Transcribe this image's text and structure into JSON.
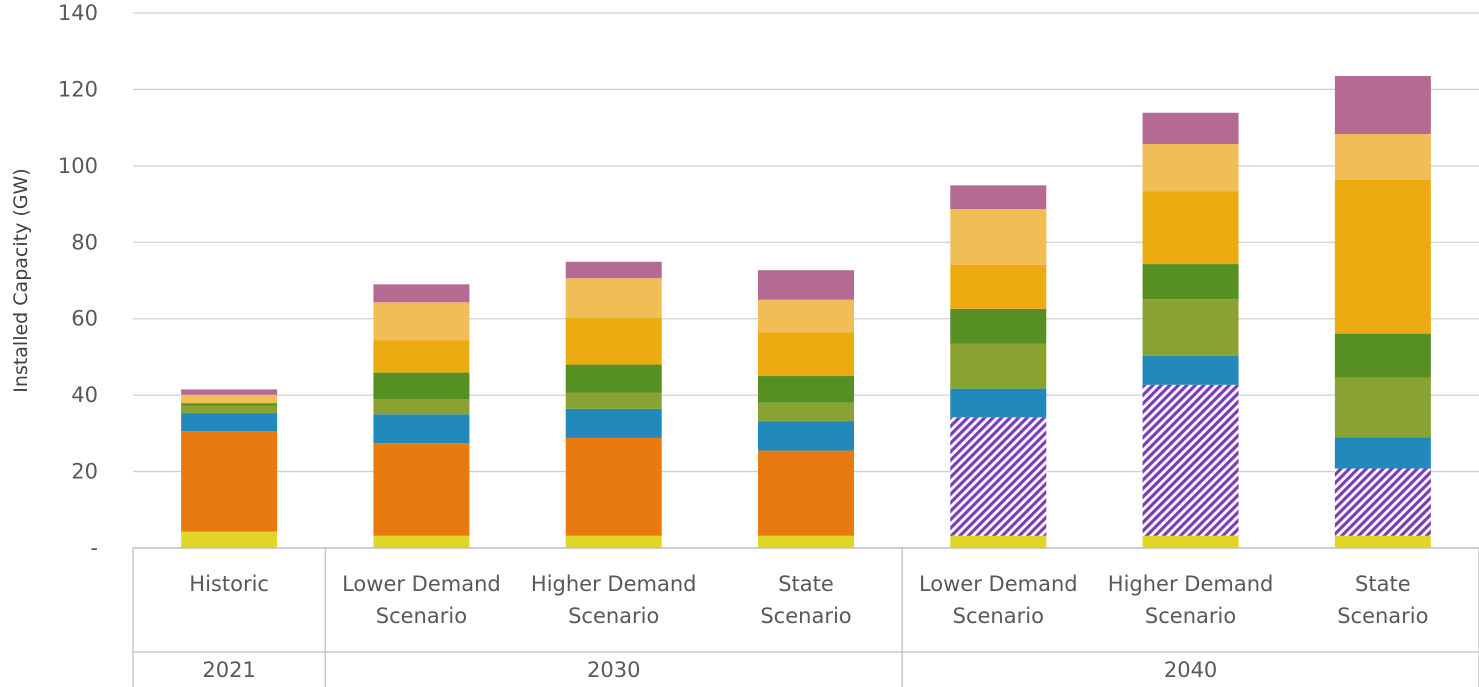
{
  "chart_data": {
    "type": "bar",
    "stacked": true,
    "ylabel": "Installed Capacity (GW)",
    "ylim": [
      0,
      140
    ],
    "yticks": [
      {
        "value": 0,
        "label": "-"
      },
      {
        "value": 20,
        "label": "20"
      },
      {
        "value": 40,
        "label": "40"
      },
      {
        "value": 60,
        "label": "60"
      },
      {
        "value": 80,
        "label": "80"
      },
      {
        "value": 100,
        "label": "100"
      },
      {
        "value": 120,
        "label": "120"
      },
      {
        "value": 140,
        "label": "140"
      }
    ],
    "grid": true,
    "categories": [
      {
        "label": [
          "Historic"
        ],
        "group": "2021"
      },
      {
        "label": [
          "Lower Demand",
          "Scenario"
        ],
        "group": "2030"
      },
      {
        "label": [
          "Higher Demand",
          "Scenario"
        ],
        "group": "2030"
      },
      {
        "label": [
          "State",
          "Scenario"
        ],
        "group": "2030"
      },
      {
        "label": [
          "Lower Demand",
          "Scenario"
        ],
        "group": "2040"
      },
      {
        "label": [
          "Higher Demand",
          "Scenario"
        ],
        "group": "2040"
      },
      {
        "label": [
          "State",
          "Scenario"
        ],
        "group": "2040"
      }
    ],
    "groups": [
      {
        "label": "2021",
        "span": 1
      },
      {
        "label": "2030",
        "span": 3
      },
      {
        "label": "2040",
        "span": 3
      }
    ],
    "series": [
      {
        "color": "#E1D628",
        "values": [
          4.3,
          3.2,
          3.2,
          3.2,
          3.2,
          3.2,
          3.2
        ]
      },
      {
        "color": "#E97A10",
        "values": [
          26.3,
          24.2,
          25.6,
          22.3,
          0,
          0,
          0
        ]
      },
      {
        "color": "#7A3EB8",
        "pattern": "hatch",
        "values": [
          0,
          0,
          0,
          0,
          31.0,
          39.5,
          17.6
        ]
      },
      {
        "color": "#2189BC",
        "values": [
          4.7,
          7.6,
          7.6,
          7.6,
          7.5,
          7.6,
          8.2
        ]
      },
      {
        "color": "#8AA232",
        "values": [
          1.9,
          3.9,
          4.2,
          4.9,
          11.8,
          14.8,
          15.6
        ]
      },
      {
        "color": "#568F22",
        "values": [
          0.7,
          7.0,
          7.4,
          7.0,
          9.1,
          9.2,
          11.5
        ]
      },
      {
        "color": "#EDAB12",
        "values": [
          0,
          8.4,
          12.2,
          11.4,
          11.5,
          19.0,
          40.2
        ]
      },
      {
        "color": "#F0BD56",
        "values": [
          2.2,
          10.0,
          10.4,
          8.6,
          14.6,
          12.4,
          12.0
        ]
      },
      {
        "color": "#B46A93",
        "values": [
          1.4,
          4.7,
          4.3,
          7.7,
          6.2,
          8.2,
          15.2
        ]
      }
    ]
  }
}
